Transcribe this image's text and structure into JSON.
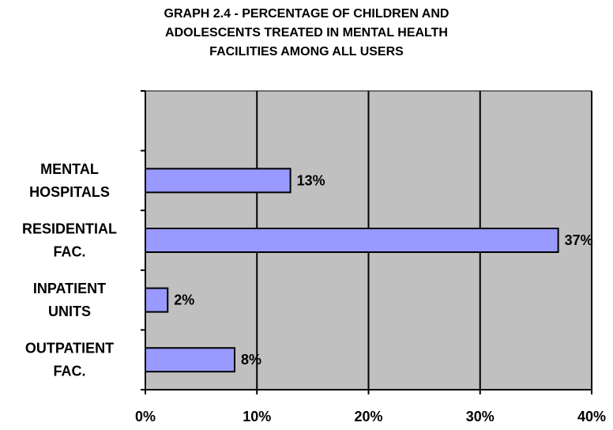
{
  "chart_data": {
    "type": "bar",
    "orientation": "horizontal",
    "title_lines": [
      "GRAPH 2.4 - PERCENTAGE OF CHILDREN AND",
      "ADOLESCENTS TREATED IN MENTAL HEALTH",
      "FACILITIES AMONG ALL USERS"
    ],
    "categories": [
      [
        "MENTAL",
        "HOSPITALS"
      ],
      [
        "RESIDENTIAL",
        "FAC."
      ],
      [
        "INPATIENT",
        "UNITS"
      ],
      [
        "OUTPATIENT",
        "FAC."
      ]
    ],
    "values": [
      13,
      37,
      2,
      8
    ],
    "data_labels": [
      "13%",
      "37%",
      "2%",
      "8%"
    ],
    "x_ticks": [
      0,
      10,
      20,
      30,
      40
    ],
    "x_tick_labels": [
      "0%",
      "10%",
      "20%",
      "30%",
      "40%"
    ],
    "xlim": [
      0,
      40
    ],
    "category_slots": 5,
    "grid": "vertical",
    "legend": "none",
    "colors": {
      "plot_background": "#c0c0c0",
      "bar_fill": "#9999ff",
      "bar_stroke": "#000000",
      "gridline": "#000000"
    }
  }
}
